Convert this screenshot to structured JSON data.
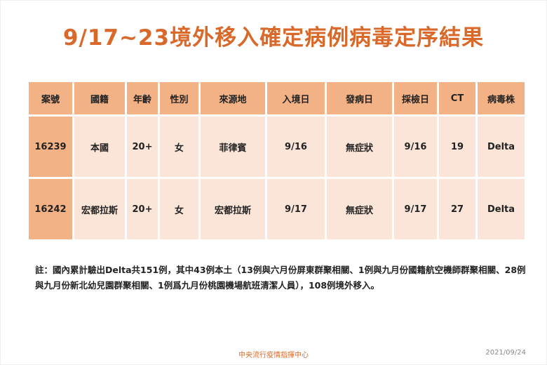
{
  "title": "9/17~23境外移入確定病例病毒定序結果",
  "table": {
    "headers": [
      "案號",
      "國籍",
      "年齡",
      "性別",
      "來源地",
      "入境日",
      "發病日",
      "採檢日",
      "CT",
      "病毒株"
    ],
    "rows": [
      [
        "16239",
        "本國",
        "20+",
        "女",
        "菲律賓",
        "9/16",
        "無症狀",
        "9/16",
        "19",
        "Delta"
      ],
      [
        "16242",
        "宏都拉斯",
        "20+",
        "女",
        "宏都拉斯",
        "9/17",
        "無症狀",
        "9/17",
        "27",
        "Delta"
      ]
    ]
  },
  "note": "註：國內累計驗出Delta共151例，其中43例本土（13例與六月份屏東群聚相關、1例與九月份國籍航空機師群聚相關、28例與九月份新北幼兒園群聚相關、1例爲九月份桃園機場航班清潔人員），108例境外移入。",
  "footer": {
    "org": "中央流行疫情指揮中心",
    "date": "2021/09/24"
  },
  "colors": {
    "title": "#d9692a",
    "header": "#f2b285",
    "cell": "#fbe5d8"
  }
}
